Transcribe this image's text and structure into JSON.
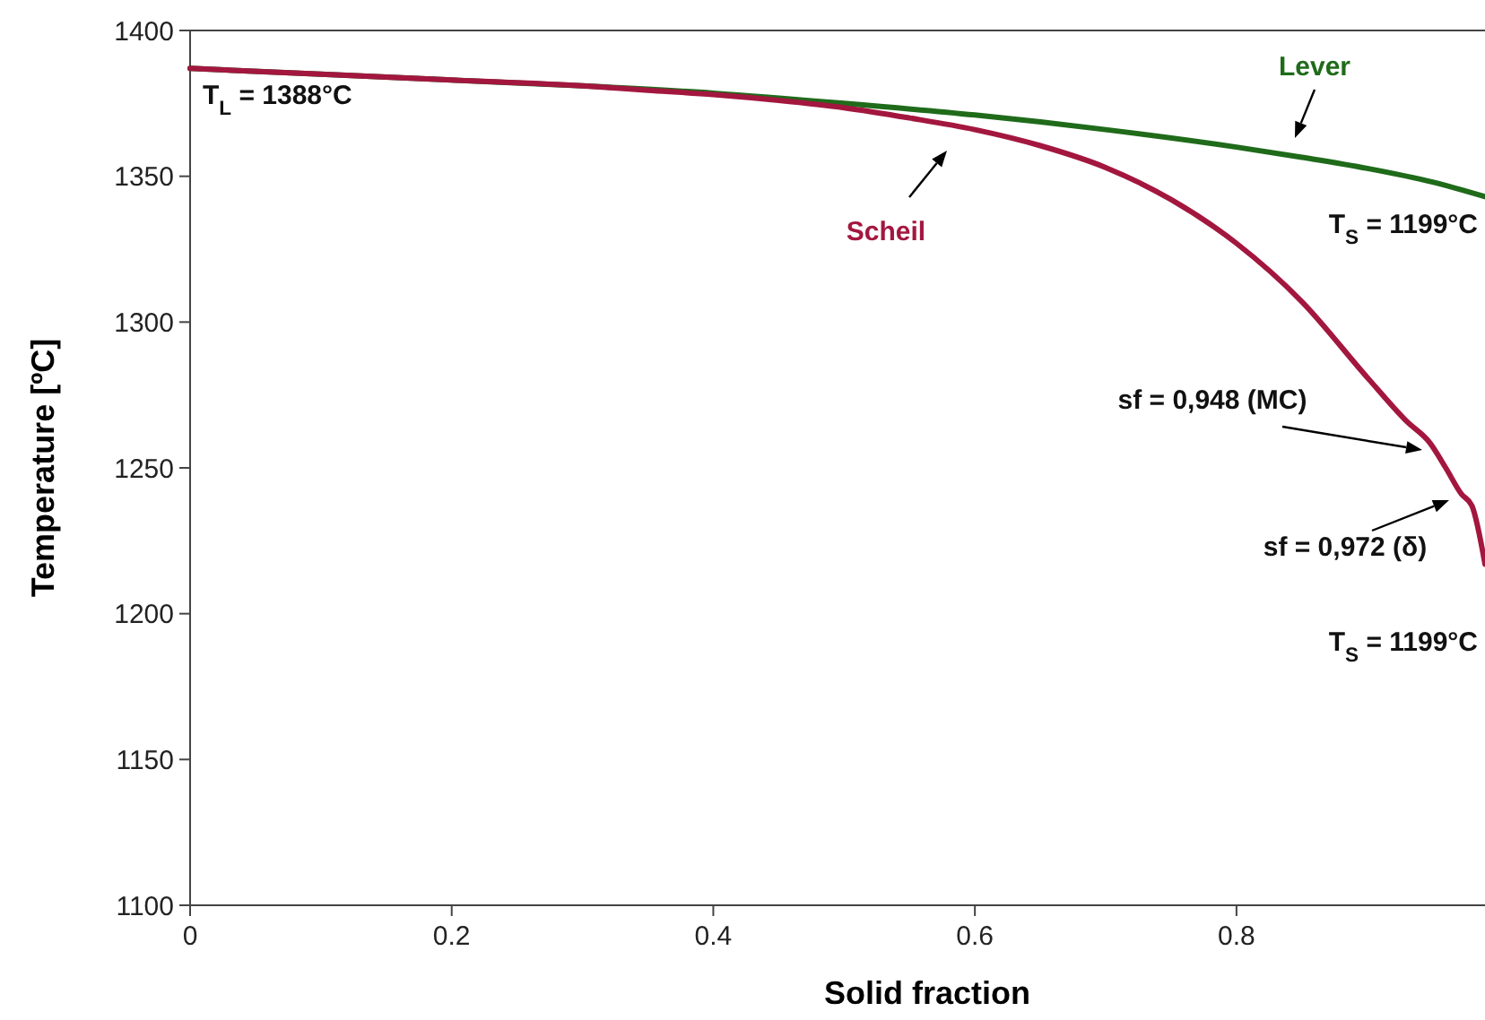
{
  "chart_data": {
    "type": "line",
    "xlabel": "Solid fraction",
    "ylabel": "Temperature [ºC]",
    "xlim": [
      0,
      0.99
    ],
    "xticks": [
      {
        "value": 0,
        "label": "0"
      },
      0.2,
      0.4,
      0.6,
      0.8
    ],
    "ylim": [
      1100,
      1400
    ],
    "yticks": [
      1100,
      1150,
      1200,
      1250,
      1300,
      1350,
      1400
    ],
    "grid": false,
    "marker": "none",
    "line_style": "solid",
    "series": [
      {
        "name": "Lever",
        "color": "#1f6b1a",
        "x": [
          0,
          0.1,
          0.2,
          0.3,
          0.4,
          0.5,
          0.6,
          0.7,
          0.8,
          0.85,
          0.9,
          0.95,
          0.99
        ],
        "values": [
          1387,
          1385,
          1383,
          1381,
          1378.5,
          1375,
          1371,
          1366,
          1360,
          1356.5,
          1352.7,
          1348,
          1343
        ]
      },
      {
        "name": "Scheil",
        "color": "#a3173f",
        "x": [
          0,
          0.1,
          0.2,
          0.3,
          0.35,
          0.4,
          0.45,
          0.5,
          0.55,
          0.6,
          0.65,
          0.7,
          0.75,
          0.8,
          0.85,
          0.9,
          0.93,
          0.948,
          0.96,
          0.972,
          0.98,
          0.99
        ],
        "values": [
          1387,
          1385,
          1383,
          1381,
          1379.5,
          1378,
          1376,
          1373.5,
          1370,
          1366,
          1360.5,
          1353,
          1342,
          1327,
          1307,
          1281,
          1266,
          1258.5,
          1250,
          1241,
          1237,
          1217
        ]
      }
    ],
    "annotations": [
      "T$_{L}$ = 1388°C",
      "T$_{S}$ = 1199°C",
      "sf = 0,948 (MC)",
      "sf = 0,972 (δ)",
      "T$_{S}$ = 1199°C"
    ]
  }
}
